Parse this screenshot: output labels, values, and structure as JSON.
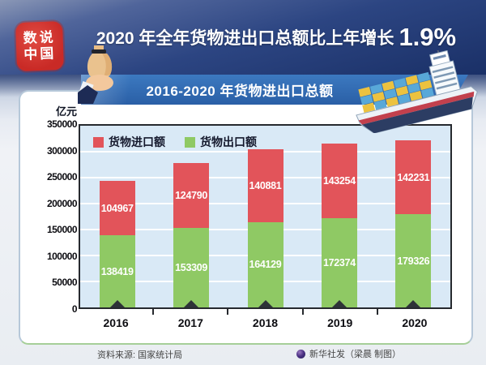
{
  "header": {
    "seal_line1": "数说",
    "seal_line2": "中国",
    "title_prefix": "2020 年全年货物进出口总额比上年增长",
    "title_highlight": "1.9%"
  },
  "banner": {
    "label": "2016-2020 年货物进出口总额"
  },
  "chart_data": {
    "type": "bar",
    "stacked": true,
    "title": "2016-2020 年货物进出口总额",
    "unit_label": "亿元",
    "categories": [
      "2016",
      "2017",
      "2018",
      "2019",
      "2020"
    ],
    "series": [
      {
        "name": "货物进口额",
        "color": "#e2545a",
        "stack_position": "top",
        "values": [
          104967,
          124790,
          140881,
          143254,
          142231
        ]
      },
      {
        "name": "货物出口额",
        "color": "#8fc964",
        "stack_position": "bottom",
        "values": [
          138419,
          153309,
          164129,
          172374,
          179326
        ]
      }
    ],
    "ylim": [
      0,
      350000
    ],
    "ytick_step": 50000,
    "yticks": [
      "350000",
      "300000",
      "250000",
      "200000",
      "150000",
      "100000",
      "50000",
      "0"
    ],
    "grid": true,
    "legend_position": "top-left-inside"
  },
  "footer": {
    "source": "资料来源: 国家统计局",
    "credit": "新华社发（梁晨 制图）"
  },
  "colors": {
    "header_bg": "#22407e",
    "ribbon_blue": "#2e6ab0",
    "seal_red": "#cd2b27",
    "plot_bg": "#d9e9f6",
    "axis": "#26292e",
    "import_red": "#e2545a",
    "export_green": "#8fc964"
  }
}
